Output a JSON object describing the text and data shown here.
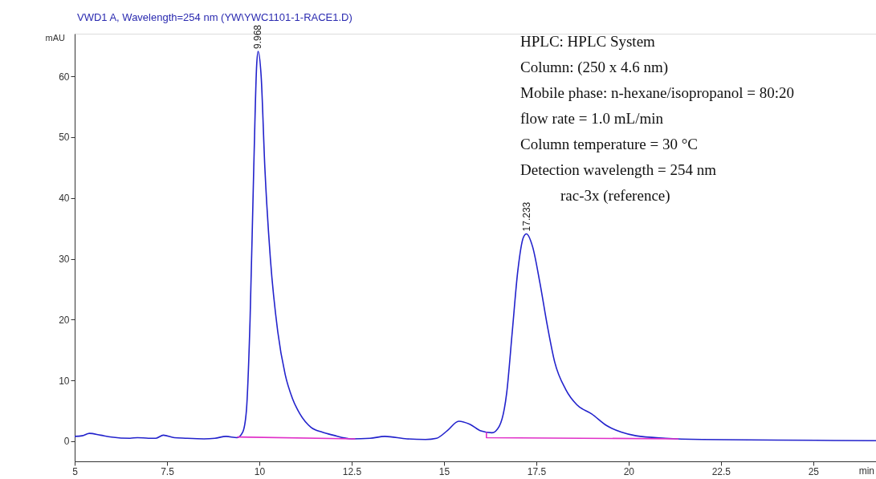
{
  "chart_data": {
    "type": "line",
    "title": "VWD1 A, Wavelength=254 nm (YW\\YWC1101-1-RACE1.D)",
    "xlabel": "min",
    "ylabel": "mAU",
    "xlim": [
      5,
      26.7
    ],
    "ylim": [
      -3.3,
      67
    ],
    "xticks": [
      5,
      7.5,
      10,
      12.5,
      15,
      17.5,
      20,
      22.5,
      25
    ],
    "yticks": [
      0,
      10,
      20,
      30,
      40,
      50,
      60
    ],
    "grid": false,
    "legend": false,
    "marker": "none",
    "line_style": "solid",
    "series": [
      {
        "color": "#2222cc",
        "x": [
          5,
          5.2,
          5.4,
          5.7,
          6.0,
          6.5,
          6.7,
          7.0,
          7.2,
          7.4,
          7.7,
          8.0,
          8.5,
          8.8,
          9.1,
          9.4,
          9.55,
          9.65,
          9.75,
          9.85,
          9.93,
          9.968,
          10.05,
          10.15,
          10.3,
          10.5,
          10.7,
          10.9,
          11.1,
          11.4,
          11.7,
          12.0,
          12.5,
          13.0,
          13.4,
          14.0,
          14.5,
          14.8,
          15.1,
          15.4,
          15.7,
          16.0,
          16.3,
          16.5,
          16.7,
          16.85,
          17.0,
          17.15,
          17.233,
          17.4,
          17.6,
          17.8,
          18.0,
          18.3,
          18.6,
          19.0,
          19.4,
          19.8,
          20.2,
          21.0,
          22.0,
          24.0,
          26.7
        ],
        "values": [
          0.8,
          0.9,
          1.3,
          1.0,
          0.7,
          0.5,
          0.6,
          0.5,
          0.5,
          1.0,
          0.6,
          0.5,
          0.4,
          0.5,
          0.8,
          0.6,
          1.5,
          5,
          20,
          45,
          62,
          64.1,
          60,
          45,
          30,
          18,
          11,
          7,
          4.5,
          2.3,
          1.5,
          1.0,
          0.4,
          0.5,
          0.8,
          0.4,
          0.3,
          0.5,
          1.8,
          3.3,
          2.8,
          1.7,
          1.4,
          2.5,
          8,
          18,
          28,
          33.5,
          34.1,
          32,
          26,
          19,
          13,
          8.5,
          6.0,
          4.5,
          2.6,
          1.5,
          0.9,
          0.5,
          0.3,
          0.2,
          0.1
        ]
      },
      {
        "color": "#e030c8",
        "x": [
          9.4,
          12.6
        ],
        "values": [
          0.7,
          0.4
        ]
      },
      {
        "color": "#e030c8",
        "x": [
          16.15,
          16.15,
          21.35
        ],
        "values": [
          1.5,
          0.6,
          0.4
        ]
      }
    ],
    "annotations": [
      {
        "text": "9.968",
        "x": 9.968,
        "y": 64.1
      },
      {
        "text": "17.233",
        "x": 17.233,
        "y": 34.1
      },
      "HPLC: HPLC System",
      "Column: (250 x 4.6 nm)",
      "Mobile phase: n-hexane/isopropanol = 80:20",
      "flow rate = 1.0 mL/min",
      "Column temperature = 30 °C",
      "Detection wavelength = 254 nm",
      "rac-3x (reference)"
    ]
  }
}
